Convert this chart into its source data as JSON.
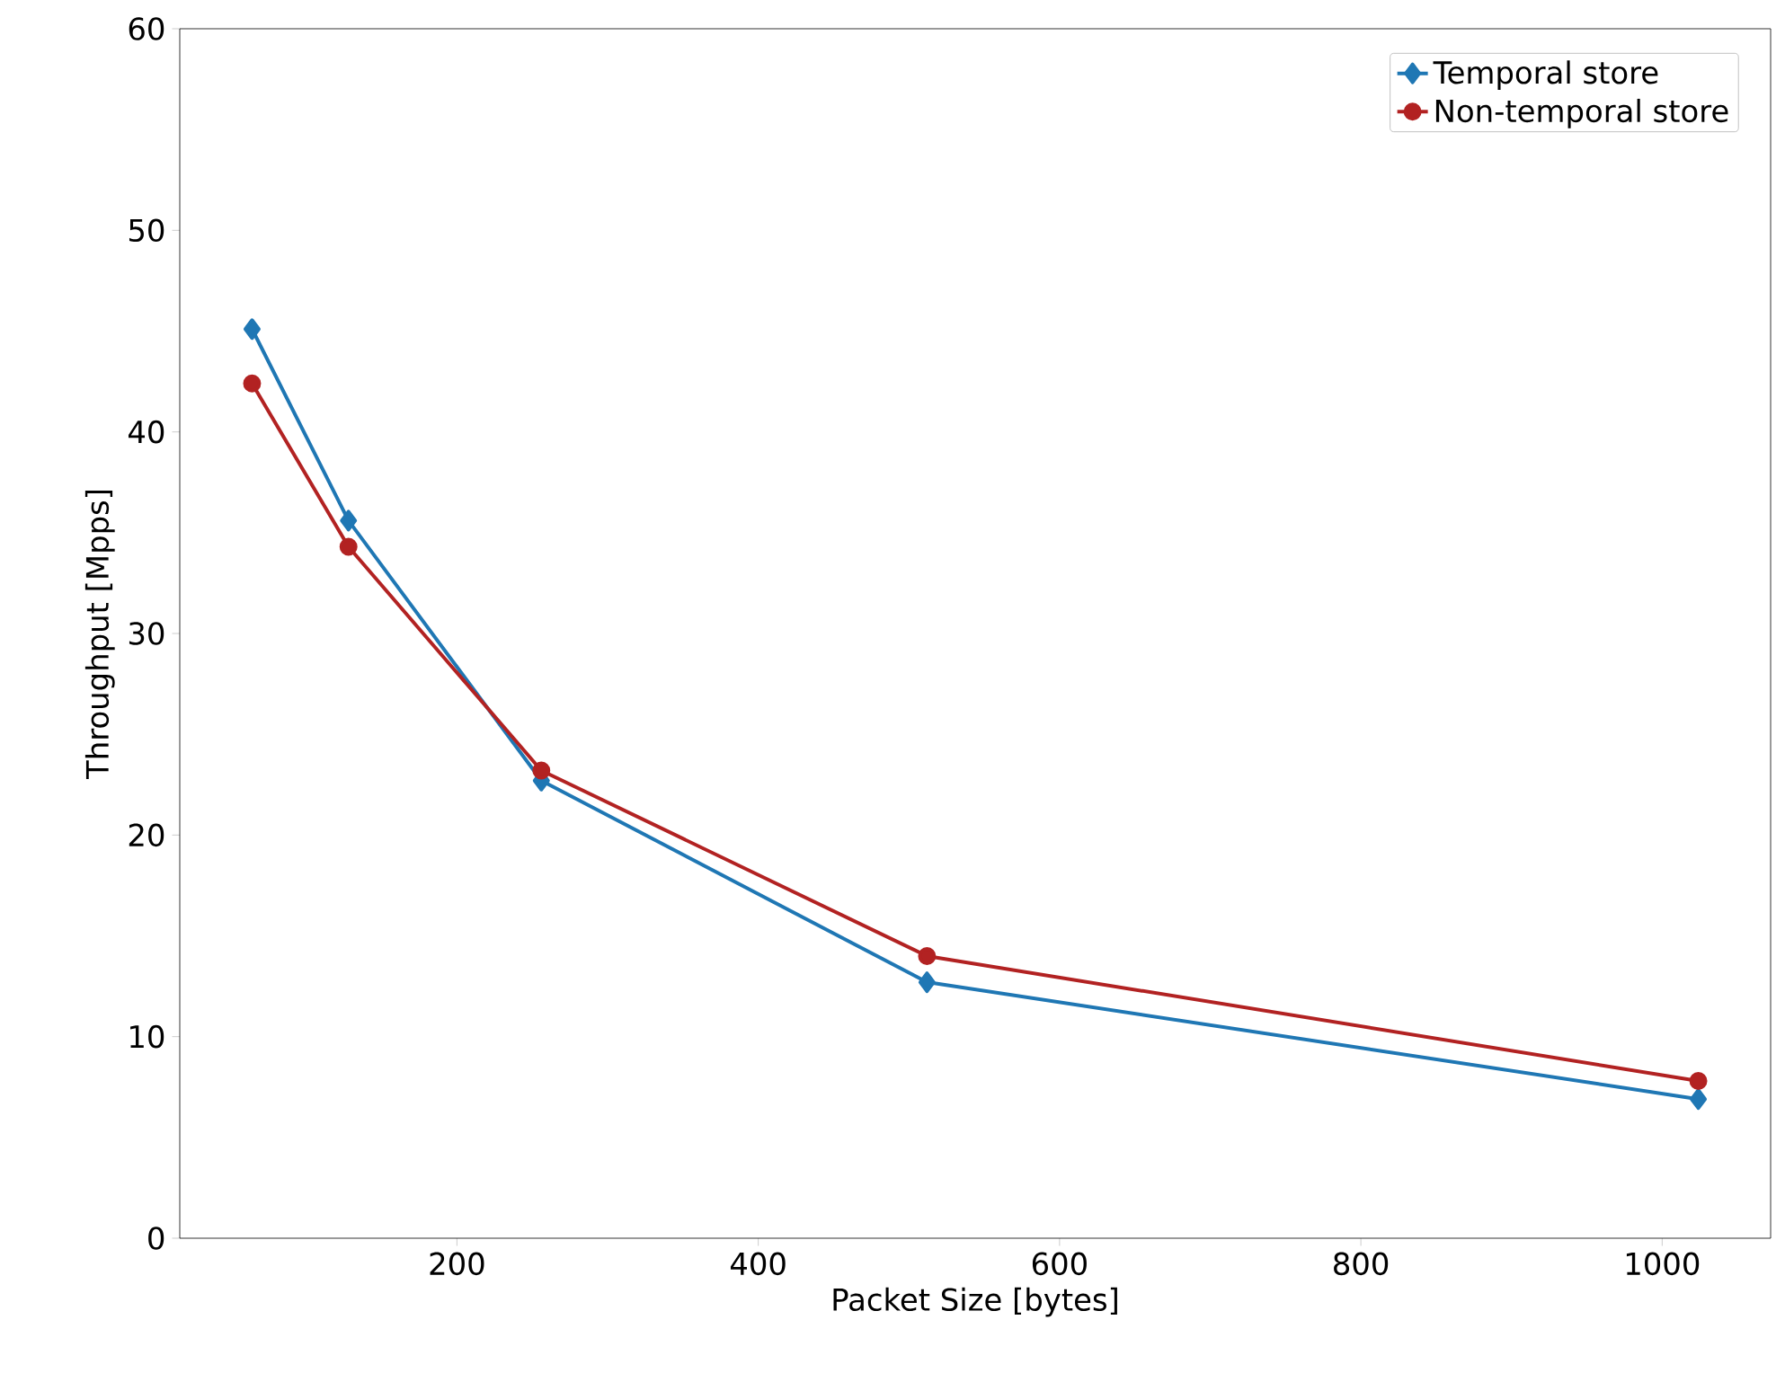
{
  "chart_data": {
    "type": "line",
    "xlabel": "Packet Size [bytes]",
    "ylabel": "Throughput [Mpps]",
    "x": [
      64,
      128,
      256,
      512,
      1024
    ],
    "series": [
      {
        "name": "Temporal store",
        "color": "#1f77b4",
        "marker": "diamond",
        "values": [
          45.1,
          35.6,
          22.7,
          12.7,
          6.9
        ]
      },
      {
        "name": "Non-temporal store",
        "color": "#b22222",
        "marker": "circle",
        "values": [
          42.4,
          34.3,
          23.2,
          14.0,
          7.8
        ]
      }
    ],
    "xlim": [
      16,
      1072
    ],
    "ylim": [
      0,
      60
    ],
    "xticks": [
      200,
      400,
      600,
      800,
      1000
    ],
    "yticks": [
      0,
      10,
      20,
      30,
      40,
      50,
      60
    ],
    "grid": false,
    "legend": "top right",
    "line_style": "solid"
  }
}
